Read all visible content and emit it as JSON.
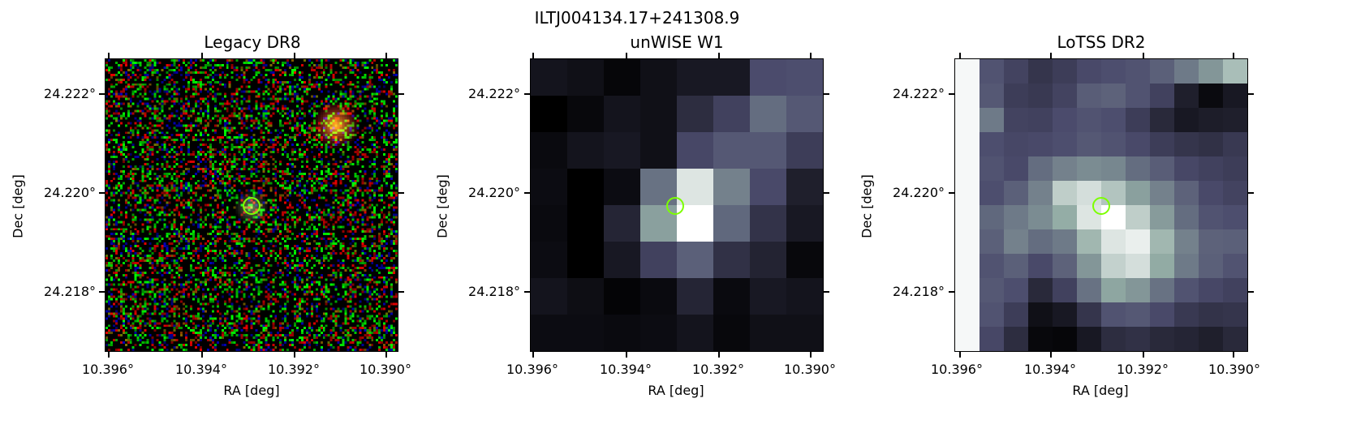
{
  "figure": {
    "suptitle": "ILTJ004134.17+241308.9"
  },
  "panels": [
    {
      "title": "Legacy DR8",
      "xlabel": "RA [deg]",
      "ylabel": "Dec [deg]",
      "xticks": [
        "10.396°",
        "10.394°",
        "10.392°",
        "10.390°"
      ],
      "yticks": [
        "24.222°",
        "24.220°",
        "24.218°"
      ],
      "image": "rgb-noise"
    },
    {
      "title": "unWISE W1",
      "xlabel": "RA [deg]",
      "ylabel": "Dec [deg]",
      "xticks": [
        "10.396°",
        "10.394°",
        "10.392°",
        "10.390°"
      ],
      "yticks": [
        "24.222°",
        "24.220°",
        "24.218°"
      ],
      "image": "bone-coarse"
    },
    {
      "title": "LoTSS DR2",
      "xlabel": "RA [deg]",
      "ylabel": "Dec [deg]",
      "xticks": [
        "10.396°",
        "10.394°",
        "10.392°",
        "10.390°"
      ],
      "yticks": [
        "24.222°",
        "24.220°",
        "24.218°"
      ],
      "image": "bone-fine"
    }
  ],
  "marker_color": "#7cff00",
  "unwise_grid": [
    [
      0.1,
      0.08,
      0.03,
      0.08,
      0.12,
      0.12,
      0.37,
      0.38
    ],
    [
      0.0,
      0.04,
      0.1,
      0.08,
      0.22,
      0.32,
      0.5,
      0.42
    ],
    [
      0.05,
      0.1,
      0.12,
      0.08,
      0.35,
      0.42,
      0.42,
      0.3
    ],
    [
      0.06,
      0.0,
      0.06,
      0.52,
      0.92,
      0.58,
      0.36,
      0.15
    ],
    [
      0.05,
      0.0,
      0.18,
      0.7,
      1.0,
      0.48,
      0.25,
      0.12
    ],
    [
      0.06,
      0.0,
      0.12,
      0.32,
      0.45,
      0.24,
      0.17,
      0.04
    ],
    [
      0.1,
      0.07,
      0.02,
      0.05,
      0.18,
      0.05,
      0.12,
      0.1
    ],
    [
      0.06,
      0.06,
      0.05,
      0.06,
      0.1,
      0.04,
      0.08,
      0.08
    ]
  ],
  "lotss_grid": [
    [
      0.98,
      0.4,
      0.33,
      0.26,
      0.3,
      0.36,
      0.38,
      0.4,
      0.45,
      0.55,
      0.66,
      0.8
    ],
    [
      0.98,
      0.42,
      0.3,
      0.28,
      0.33,
      0.44,
      0.46,
      0.4,
      0.32,
      0.15,
      0.05,
      0.12
    ],
    [
      0.98,
      0.55,
      0.33,
      0.32,
      0.37,
      0.4,
      0.38,
      0.3,
      0.2,
      0.12,
      0.14,
      0.15
    ],
    [
      0.98,
      0.38,
      0.35,
      0.36,
      0.38,
      0.42,
      0.4,
      0.36,
      0.3,
      0.26,
      0.24,
      0.28
    ],
    [
      0.98,
      0.4,
      0.36,
      0.5,
      0.58,
      0.62,
      0.6,
      0.5,
      0.44,
      0.35,
      0.32,
      0.3
    ],
    [
      0.98,
      0.38,
      0.45,
      0.58,
      0.85,
      0.9,
      0.82,
      0.7,
      0.58,
      0.46,
      0.36,
      0.33
    ],
    [
      0.98,
      0.48,
      0.55,
      0.62,
      0.75,
      0.92,
      1.0,
      0.85,
      0.68,
      0.5,
      0.4,
      0.38
    ],
    [
      0.98,
      0.45,
      0.58,
      0.5,
      0.55,
      0.78,
      0.92,
      0.95,
      0.78,
      0.58,
      0.46,
      0.45
    ],
    [
      0.98,
      0.4,
      0.45,
      0.36,
      0.46,
      0.66,
      0.86,
      0.9,
      0.74,
      0.55,
      0.45,
      0.4
    ],
    [
      0.98,
      0.42,
      0.38,
      0.2,
      0.32,
      0.52,
      0.72,
      0.66,
      0.52,
      0.4,
      0.35,
      0.32
    ],
    [
      0.98,
      0.4,
      0.3,
      0.08,
      0.12,
      0.26,
      0.4,
      0.42,
      0.36,
      0.28,
      0.25,
      0.26
    ],
    [
      0.98,
      0.35,
      0.22,
      0.04,
      0.03,
      0.12,
      0.22,
      0.24,
      0.2,
      0.18,
      0.15,
      0.2
    ]
  ]
}
